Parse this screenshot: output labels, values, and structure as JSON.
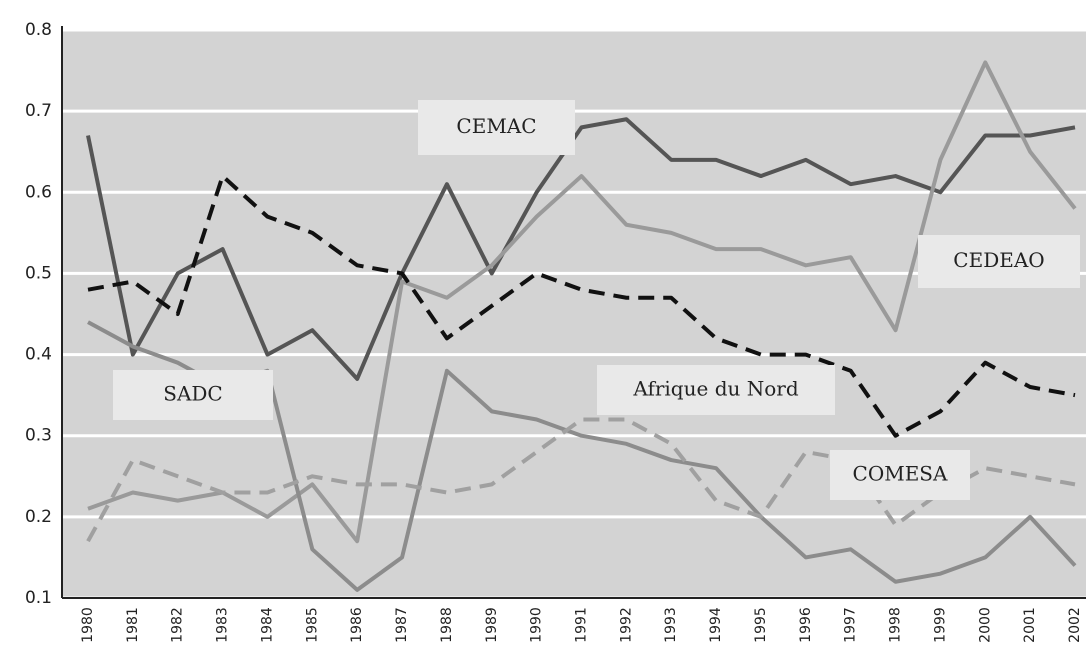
{
  "chart_data": {
    "type": "line",
    "categories": [
      "1980",
      "1981",
      "1982",
      "1983",
      "1984",
      "1985",
      "1986",
      "1987",
      "1988",
      "1989",
      "1990",
      "1991",
      "1992",
      "1993",
      "1994",
      "1995",
      "1996",
      "1997",
      "1998",
      "1999",
      "2000",
      "2001",
      "2002"
    ],
    "series": [
      {
        "name": "CEMAC",
        "color": "#555555",
        "dashed": false,
        "values": [
          0.67,
          0.4,
          0.5,
          0.53,
          0.4,
          0.43,
          0.37,
          0.5,
          0.61,
          0.5,
          0.6,
          0.68,
          0.69,
          0.64,
          0.64,
          0.62,
          0.64,
          0.61,
          0.62,
          0.6,
          0.67,
          0.67,
          0.68
        ]
      },
      {
        "name": "CEDEAO",
        "color": "#9a9a9a",
        "dashed": false,
        "values": [
          0.21,
          0.23,
          0.22,
          0.23,
          0.2,
          0.24,
          0.17,
          0.49,
          0.47,
          0.51,
          0.57,
          0.62,
          0.56,
          0.55,
          0.53,
          0.53,
          0.51,
          0.52,
          0.43,
          0.64,
          0.76,
          0.65,
          0.58
        ]
      },
      {
        "name": "Afrique du Nord",
        "color": "#111111",
        "dashed": true,
        "values": [
          0.48,
          0.49,
          0.45,
          0.62,
          0.57,
          0.55,
          0.51,
          0.5,
          0.42,
          0.46,
          0.5,
          0.48,
          0.47,
          0.47,
          0.42,
          0.4,
          0.4,
          0.38,
          0.3,
          0.33,
          0.39,
          0.36,
          0.35
        ]
      },
      {
        "name": "SADC",
        "color": "#8c8c8c",
        "dashed": false,
        "values": [
          0.44,
          0.41,
          0.39,
          0.36,
          0.38,
          0.16,
          0.11,
          0.15,
          0.38,
          0.33,
          0.32,
          0.3,
          0.29,
          0.27,
          0.26,
          0.2,
          0.15,
          0.16,
          0.12,
          0.13,
          0.15,
          0.2,
          0.14
        ]
      },
      {
        "name": "COMESA",
        "color": "#a0a0a0",
        "dashed": true,
        "values": [
          0.17,
          0.27,
          0.25,
          0.23,
          0.23,
          0.25,
          0.24,
          0.24,
          0.23,
          0.24,
          0.28,
          0.32,
          0.32,
          0.29,
          0.22,
          0.2,
          0.28,
          0.27,
          0.19,
          0.23,
          0.26,
          0.25,
          0.24
        ]
      }
    ],
    "ylim": [
      0.1,
      0.8
    ],
    "yticks": [
      0.1,
      0.2,
      0.3,
      0.4,
      0.5,
      0.6,
      0.7,
      0.8
    ],
    "grid": true
  }
}
